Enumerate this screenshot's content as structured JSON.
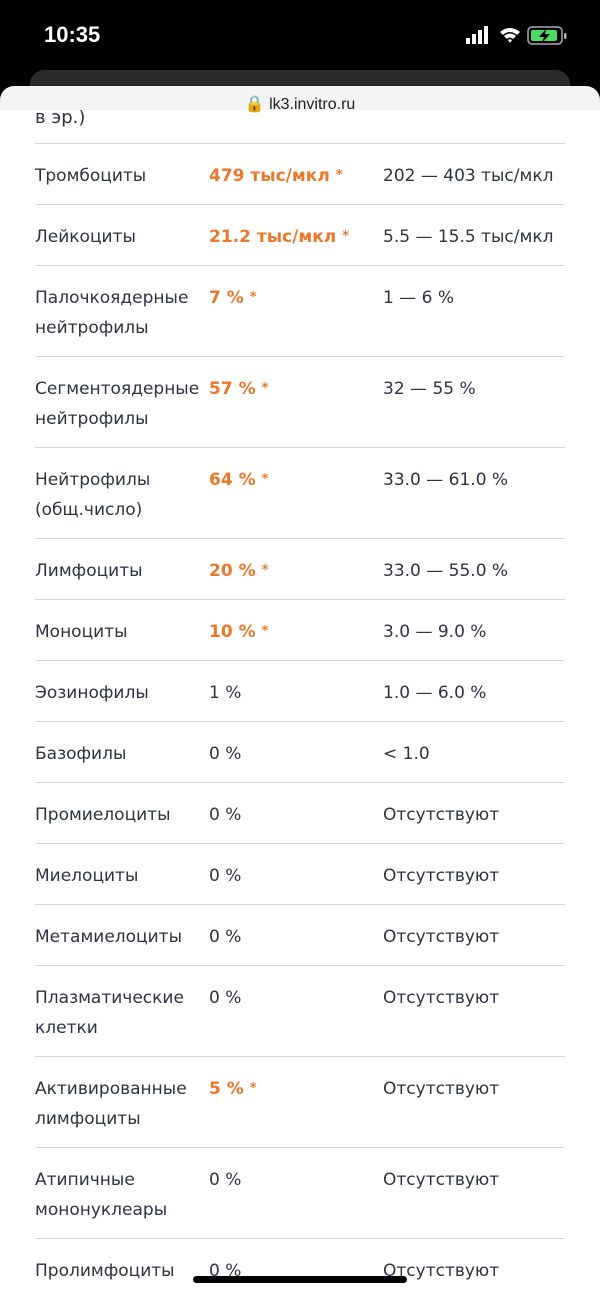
{
  "status_bar": {
    "time": "10:35"
  },
  "browser": {
    "url": "lk3.invitro.ru"
  },
  "top_fragment": "в эр.)",
  "rows": [
    {
      "name": "Тромбоциты",
      "result": "479 тыс/мкл",
      "flag": "*",
      "reference": "202 — 403 тыс/мкл"
    },
    {
      "name": "Лейкоциты",
      "result": "21.2 тыс/мкл",
      "flag": "*",
      "reference": "5.5 — 15.5 тыс/мкл"
    },
    {
      "name": "Палочкоядерные\nнейтрофилы",
      "result": "7 %",
      "flag": "*",
      "reference": "1 — 6 %"
    },
    {
      "name": "Сегментоядерные\nнейтрофилы",
      "result": "57 %",
      "flag": "*",
      "reference": "32 — 55 %"
    },
    {
      "name": "Нейтрофилы\n(общ.число)",
      "result": "64 %",
      "flag": "*",
      "reference": "33.0 — 61.0 %"
    },
    {
      "name": "Лимфоциты",
      "result": "20 %",
      "flag": "*",
      "reference": "33.0 — 55.0 %"
    },
    {
      "name": "Моноциты",
      "result": "10 %",
      "flag": "*",
      "reference": "3.0 — 9.0 %"
    },
    {
      "name": "Эозинофилы",
      "result": "1 %",
      "reference": "1.0 — 6.0 %"
    },
    {
      "name": "Базофилы",
      "result": "0 %",
      "reference": "< 1.0"
    },
    {
      "name": "Промиелоциты",
      "result": "0 %",
      "reference": "Отсутствуют"
    },
    {
      "name": "Миелоциты",
      "result": "0 %",
      "reference": "Отсутствуют"
    },
    {
      "name": "Метамиелоциты",
      "result": "0 %",
      "reference": "Отсутствуют"
    },
    {
      "name": "Плазматические\nклетки",
      "result": "0 %",
      "reference": "Отсутствуют"
    },
    {
      "name": "Активированные\nлимфоциты",
      "result": "5 %",
      "flag": "*",
      "reference": "Отсутствуют"
    },
    {
      "name": "Атипичные\nмононуклеары",
      "result": "0 %",
      "reference": "Отсутствуют"
    },
    {
      "name": "Пролимфоциты",
      "result": "0 %",
      "reference": "Отсутствуют"
    }
  ]
}
